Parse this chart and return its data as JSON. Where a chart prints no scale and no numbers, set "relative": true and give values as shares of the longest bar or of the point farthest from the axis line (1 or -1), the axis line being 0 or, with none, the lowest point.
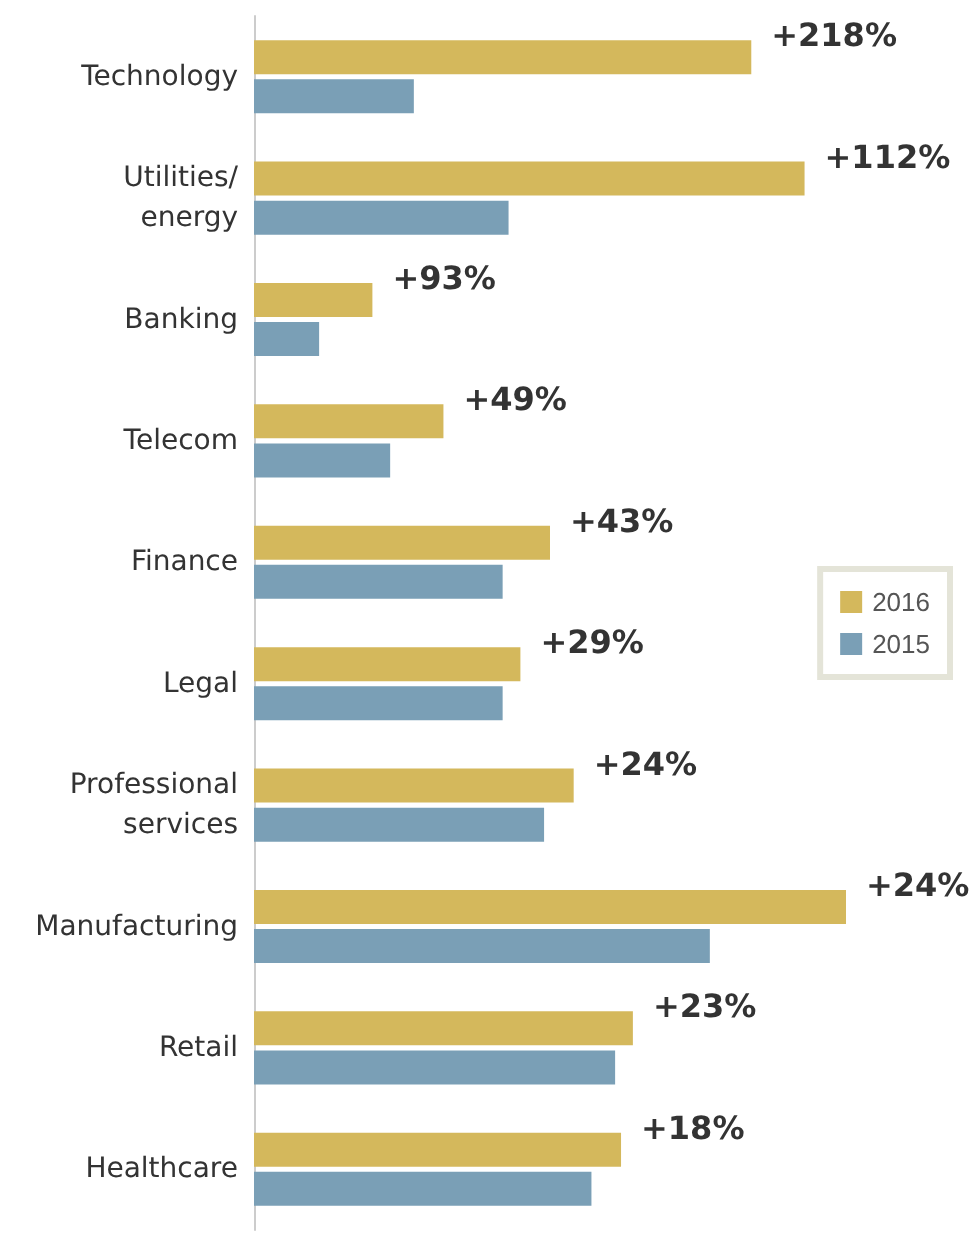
{
  "chart_data": {
    "type": "bar",
    "orientation": "horizontal",
    "relative": true,
    "legend": "right",
    "categories": [
      "Technology",
      "Utilities/\nenergy",
      "Banking",
      "Telecom",
      "Finance",
      "Legal",
      "Professional\nservices",
      "Manufacturing",
      "Retail",
      "Healthcare"
    ],
    "series": [
      {
        "name": "2016",
        "color": "#d4b85c",
        "values": [
          0.84,
          0.93,
          0.2,
          0.32,
          0.5,
          0.45,
          0.54,
          1,
          0.64,
          0.62
        ]
      },
      {
        "name": "2015",
        "color": "#7a9fb6",
        "values": [
          0.27,
          0.43,
          0.11,
          0.23,
          0.42,
          0.42,
          0.49,
          0.77,
          0.61,
          0.57
        ]
      }
    ],
    "annotations": [
      {
        "text": "+218%",
        "x": 0.84,
        "y": "Technology"
      },
      {
        "text": "+112%",
        "x": 0.93,
        "y": "Utilities/\nenergy"
      },
      {
        "text": "+93%",
        "x": 0.2,
        "y": "Banking"
      },
      {
        "text": "+49%",
        "x": 0.32,
        "y": "Telecom"
      },
      {
        "text": "+43%",
        "x": 0.5,
        "y": "Finance"
      },
      {
        "text": "+29%",
        "x": 0.45,
        "y": "Legal"
      },
      {
        "text": "+24%",
        "x": 0.54,
        "y": "Professional\nservices"
      },
      {
        "text": "+24%",
        "x": 1,
        "y": "Manufacturing"
      },
      {
        "text": "+23%",
        "x": 0.64,
        "y": "Retail"
      },
      {
        "text": "+18%",
        "x": 0.62,
        "y": "Healthcare"
      }
    ]
  }
}
